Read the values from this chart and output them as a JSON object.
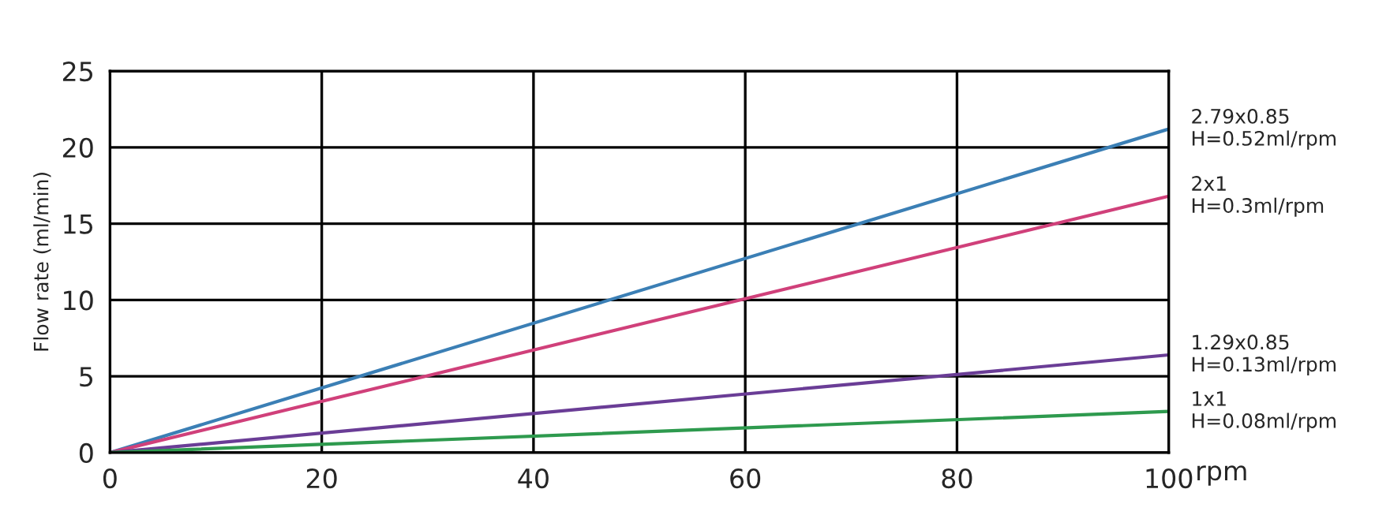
{
  "chart_data": {
    "type": "line",
    "xlabel": "rpm",
    "ylabel": "Flow rate (ml/min)",
    "xlim": [
      0,
      100
    ],
    "xticks": [
      0,
      20,
      40,
      60,
      80,
      100
    ],
    "ylim": [
      0,
      25
    ],
    "yticks": [
      0,
      5,
      10,
      15,
      20,
      25
    ],
    "grid": true,
    "x": [
      0,
      100
    ],
    "series": [
      {
        "name": "2.79x0.85\nH=0.52ml/rpm",
        "color": "#3b7fb5",
        "values": [
          0,
          21.2
        ]
      },
      {
        "name": "2x1\nH=0.3ml/rpm",
        "color": "#d0407a",
        "values": [
          0,
          16.8
        ]
      },
      {
        "name": "1.29x0.85\nH=0.13ml/rpm",
        "color": "#6a3d96",
        "values": [
          0,
          6.4
        ]
      },
      {
        "name": "1x1\nH=0.08ml/rpm",
        "color": "#2e9a4e",
        "values": [
          0,
          2.7
        ]
      }
    ]
  }
}
